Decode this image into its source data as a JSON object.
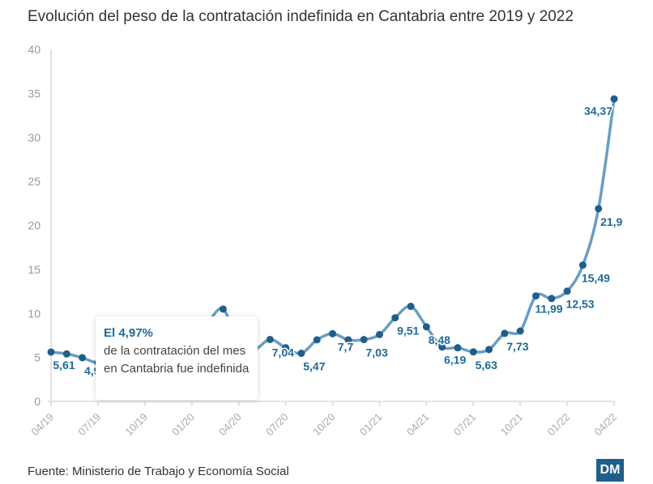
{
  "title": "Evolución del peso de la contratación indefinida en Cantabria entre 2019 y 2022",
  "source": "Fuente: Ministerio de Trabajo y Economía Social",
  "logo": "DM",
  "tooltip": {
    "value": "El 4,97%",
    "text": "de la contratación del mes en Cantabria fue indefinida"
  },
  "colors": {
    "line": "#6a9ec2",
    "point": "#1f5f8b",
    "label": "#1f6a96"
  },
  "chart_data": {
    "type": "line",
    "title": "Evolución del peso de la contratación indefinida en Cantabria entre 2019 y 2022",
    "ylim": [
      0,
      40
    ],
    "yticks": [
      "0",
      "5",
      "10",
      "15",
      "20",
      "25",
      "30",
      "35",
      "40"
    ],
    "xticks": [
      "04/19",
      "07/19",
      "10/19",
      "01/20",
      "04/20",
      "07/20",
      "10/20",
      "01/21",
      "04/21",
      "07/21",
      "10/21",
      "01/22",
      "04/22"
    ],
    "grid": false,
    "values": [
      5.61,
      5.4,
      4.97,
      4.4,
      5.0,
      5.5,
      5.6,
      6.2,
      6.6,
      8.0,
      9.0,
      10.5,
      6.5,
      5.9,
      7.04,
      6.1,
      5.47,
      7.0,
      7.7,
      7.0,
      7.03,
      7.6,
      9.51,
      10.8,
      8.48,
      6.19,
      6.1,
      5.63,
      5.9,
      7.73,
      8.0,
      11.99,
      11.7,
      12.53,
      15.49,
      21.9,
      34.37
    ],
    "labels": {
      "0": "5,61",
      "2": "4,97",
      "14": "7,04",
      "16": "5,47",
      "18": "7,7",
      "20": "7,03",
      "22": "9,51",
      "24": "8,48",
      "25": "6,19",
      "27": "5,63",
      "29": "7,73",
      "31": "11,99",
      "33": "12,53",
      "34": "15,49",
      "35": "21,9",
      "36": "34,37"
    }
  }
}
